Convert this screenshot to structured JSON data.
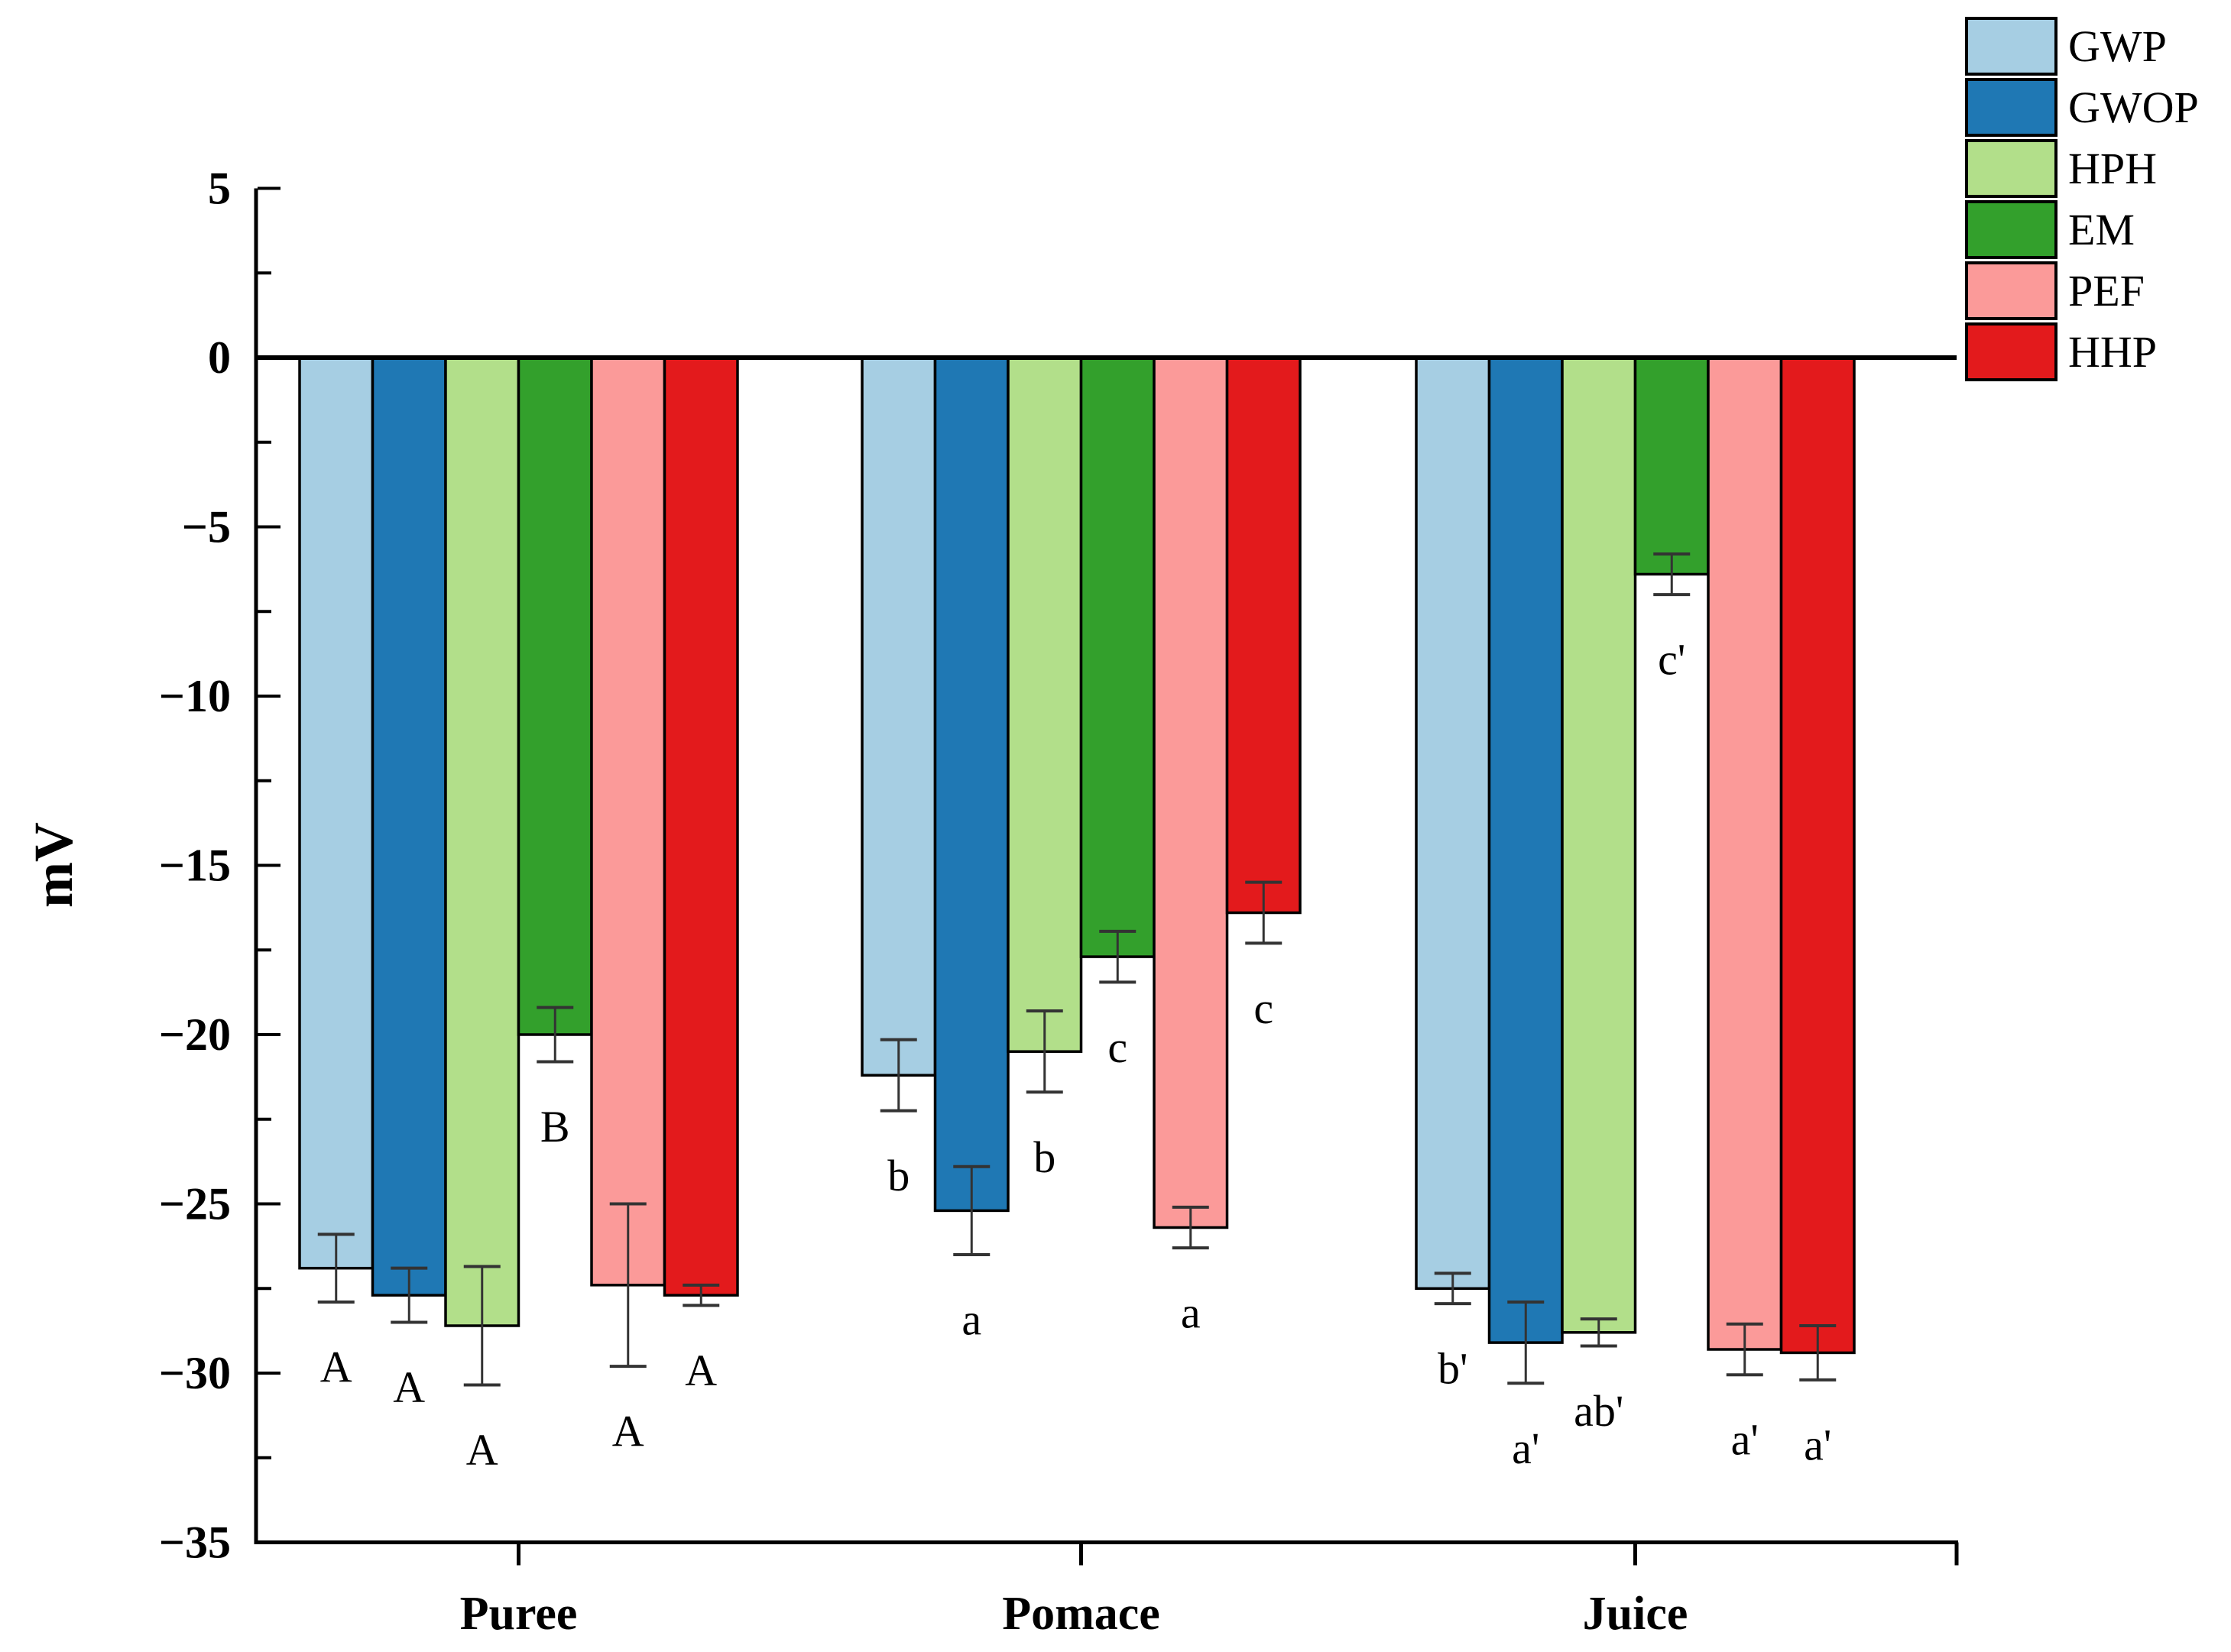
{
  "chart_data": {
    "type": "bar",
    "title": "",
    "xlabel": "",
    "ylabel": "mV",
    "ylim": [
      -35,
      5
    ],
    "grid": false,
    "legend_position": "outside-top-right",
    "y_major_tick_values": [
      5,
      0,
      -5,
      -10,
      -15,
      -20,
      -25,
      -30,
      -35
    ],
    "y_tick_labels": [
      "5",
      "0",
      "−5",
      "−10",
      "−15",
      "−20",
      "−25",
      "−30",
      "−35"
    ],
    "y_minor_tick_values": [
      2.5,
      -2.5,
      -7.5,
      -12.5,
      -17.5,
      -22.5,
      -27.5,
      -32.5
    ],
    "categories": [
      "Puree",
      "Pomace",
      "Juice"
    ],
    "series": [
      {
        "name": "GWP",
        "color": "#a6cee3",
        "values": [
          -26.9,
          -21.2,
          -27.5
        ],
        "errors": [
          1.0,
          1.05,
          0.45
        ],
        "sig_labels": [
          "A",
          "b",
          "b'"
        ]
      },
      {
        "name": "GWOP",
        "color": "#1f78b4",
        "values": [
          -27.7,
          -25.2,
          -29.1
        ],
        "errors": [
          0.8,
          1.3,
          1.2
        ],
        "sig_labels": [
          "A",
          "a",
          "a'"
        ]
      },
      {
        "name": "HPH",
        "color": "#b2df8a",
        "values": [
          -28.6,
          -20.5,
          -28.8
        ],
        "errors": [
          1.75,
          1.2,
          0.4
        ],
        "sig_labels": [
          "A",
          "b",
          "ab'"
        ]
      },
      {
        "name": "EM",
        "color": "#33a02c",
        "values": [
          -20.0,
          -17.7,
          -6.4
        ],
        "errors": [
          0.8,
          0.75,
          0.6
        ],
        "sig_labels": [
          "B",
          "c",
          "c'"
        ]
      },
      {
        "name": "PEF",
        "color": "#fb9a99",
        "values": [
          -27.4,
          -25.7,
          -29.3
        ],
        "errors": [
          2.4,
          0.6,
          0.75
        ],
        "sig_labels": [
          "A",
          "a",
          "a'"
        ]
      },
      {
        "name": "HHP",
        "color": "#e31a1c",
        "values": [
          -27.7,
          -16.4,
          -29.4
        ],
        "errors": [
          0.3,
          0.9,
          0.8
        ],
        "sig_labels": [
          "A",
          "c",
          "a'"
        ]
      }
    ],
    "colors": {
      "axis": "#000000",
      "error_bar": "#333333",
      "bar_outline": "#000000",
      "background": "#ffffff"
    }
  }
}
